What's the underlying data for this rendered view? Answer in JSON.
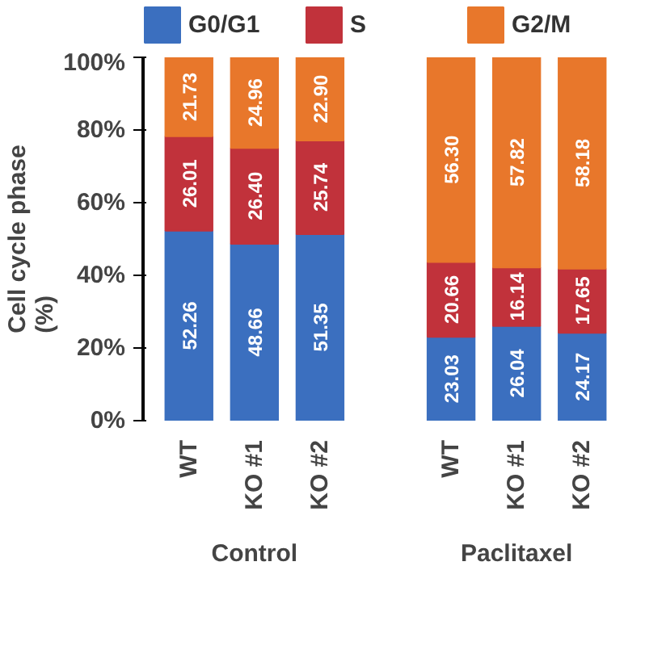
{
  "chart_data": {
    "type": "bar",
    "stacked": true,
    "ylabel": "Cell cycle phase\n(%)",
    "categories": [
      "WT",
      "KO #1",
      "KO #2",
      "WT",
      "KO #1",
      "KO #2"
    ],
    "series": [
      {
        "name": "G0/G1",
        "color": "#3b6fbf",
        "values": [
          52.26,
          48.66,
          51.35,
          23.03,
          26.04,
          24.17
        ],
        "value_labels": [
          "52.26",
          "48.66",
          "51.35",
          "23.03",
          "26.04",
          "24.17"
        ]
      },
      {
        "name": "S",
        "color": "#c1323b",
        "values": [
          26.01,
          26.4,
          25.74,
          20.66,
          16.14,
          17.65
        ],
        "value_labels": [
          "26.01",
          "26.40",
          "25.74",
          "20.66",
          "16.14",
          "17.65"
        ]
      },
      {
        "name": "G2/M",
        "color": "#e8772b",
        "values": [
          21.73,
          24.96,
          22.9,
          56.3,
          57.82,
          58.18
        ],
        "value_labels": [
          "21.73",
          "24.96",
          "22.90",
          "56.30",
          "57.82",
          "58.18"
        ]
      }
    ],
    "ylim": [
      0,
      100
    ],
    "yticks": [
      {
        "value": 0,
        "label": "0%"
      },
      {
        "value": 20,
        "label": "20%"
      },
      {
        "value": 40,
        "label": "40%"
      },
      {
        "value": 60,
        "label": "60%"
      },
      {
        "value": 80,
        "label": "80%"
      },
      {
        "value": 100,
        "label": "100%"
      }
    ],
    "legend": "top",
    "grid": false,
    "annotations": [
      "Control",
      "Paclitaxel"
    ]
  }
}
